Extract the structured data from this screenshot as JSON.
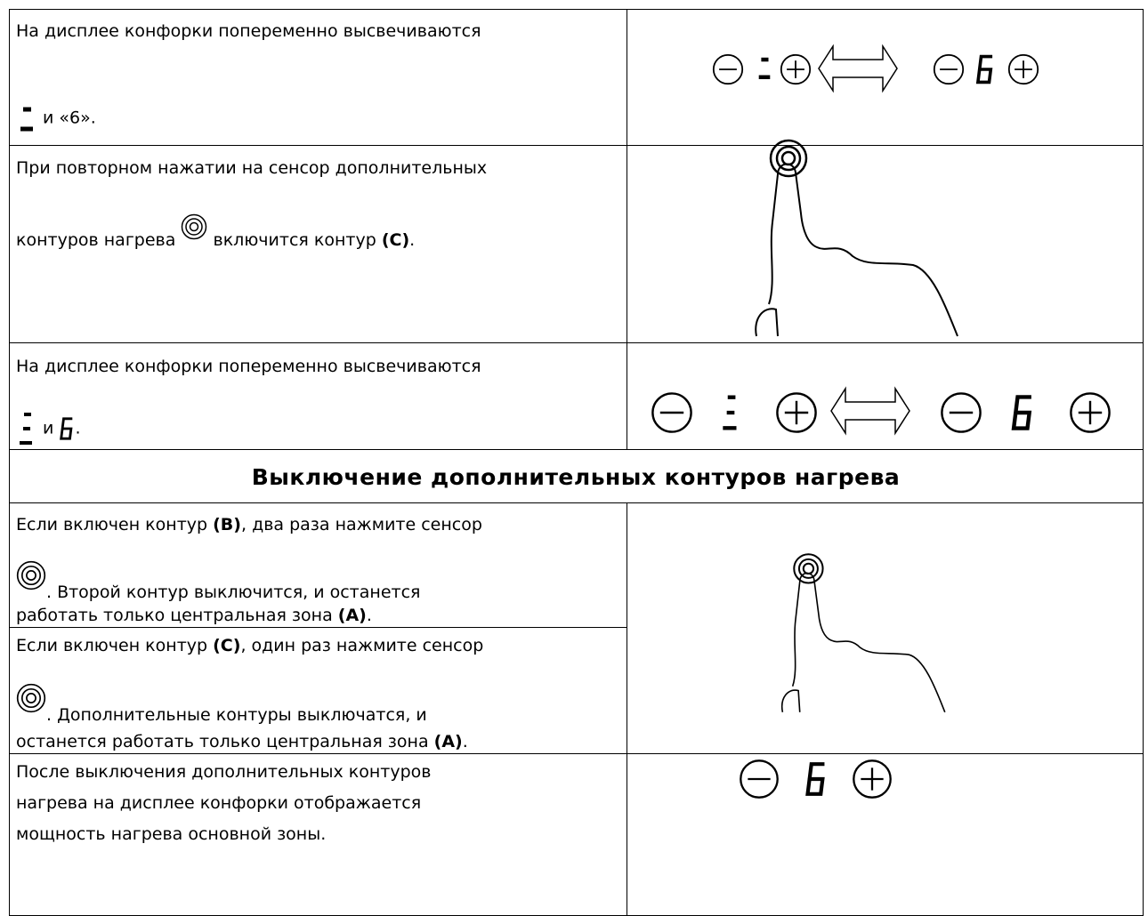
{
  "rows": [
    {
      "text": [
        "На дисплее конфорки попеременно высвечиваются",
        "и «6»."
      ]
    },
    {
      "text": [
        "При повторном нажатии на сенсор дополнительных",
        "контуров нагрева",
        "включится контур",
        "(C)",
        "."
      ]
    },
    {
      "text": [
        "На дисплее конфорки попеременно высвечиваются",
        "и",
        "."
      ]
    },
    {
      "heading": "Выключение дополнительных контуров нагрева"
    },
    {
      "text": [
        "Если включен контур",
        "(B)",
        ", два раза нажмите сенсор",
        ". Второй контур выключится, и останется",
        "работать только центральная зона",
        "(A)",
        "."
      ]
    },
    {
      "text": [
        "Если включен контур",
        "(C)",
        ", один раз нажмите сенсор",
        ". Дополнительные контуры выключатся, и",
        "останется работать только центральная зона",
        "(A)",
        "."
      ]
    },
    {
      "text": [
        "После выключения дополнительных контуров",
        "нагрева на дисплее конфорки отображается",
        "мощность нагрева основной зоны."
      ]
    }
  ]
}
